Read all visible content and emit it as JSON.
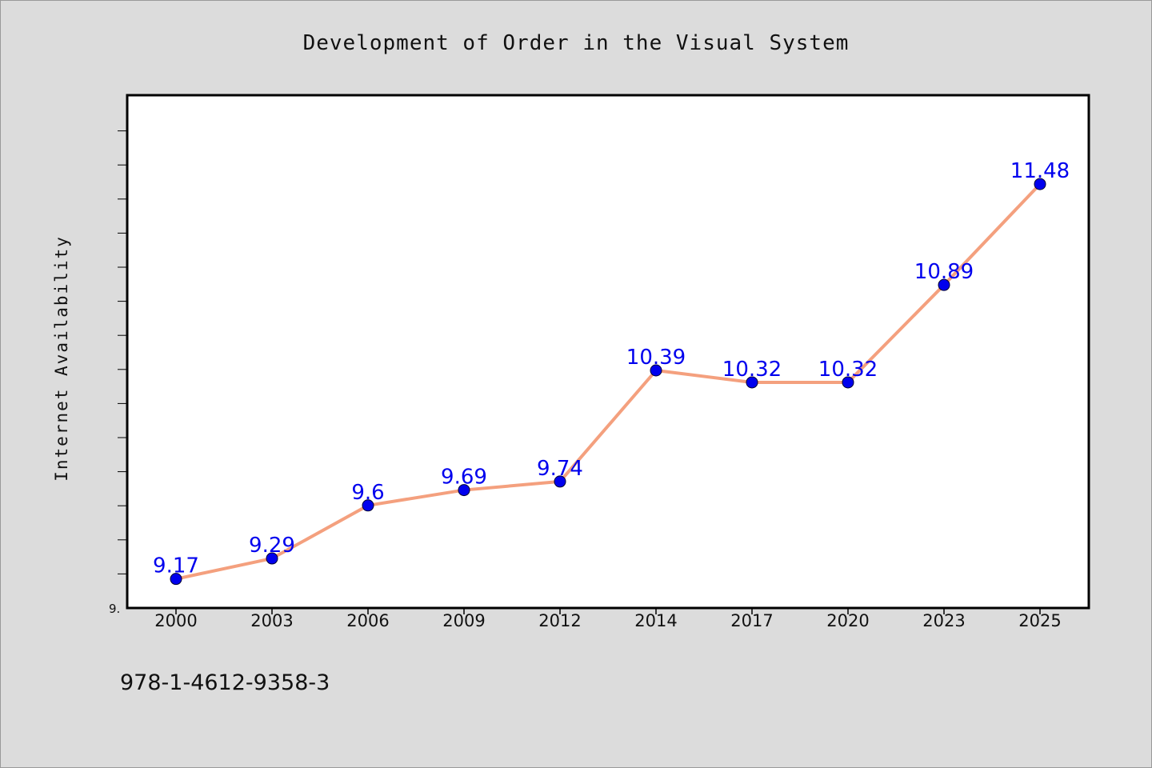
{
  "chart_data": {
    "type": "line",
    "title": "Development of Order in the Visual System",
    "xlabel": "",
    "ylabel": "Internet Availability",
    "categories": [
      "2000",
      "2003",
      "2006",
      "2009",
      "2012",
      "2014",
      "2017",
      "2020",
      "2023",
      "2025"
    ],
    "series": [
      {
        "values": [
          9.17,
          9.29,
          9.6,
          9.69,
          9.74,
          10.39,
          10.32,
          10.32,
          10.89,
          11.48
        ]
      }
    ],
    "data_labels": [
      "9.17",
      "9.29",
      "9.6",
      "9.69",
      "9.74",
      "10.39",
      "10.32",
      "10.32",
      "10.89",
      "11.48"
    ],
    "ylim": [
      9.0,
      12.0
    ],
    "y_tick_labels": [
      "9."
    ],
    "grid": false,
    "legend": "none",
    "colors": {
      "line": "#f4a07e",
      "marker": "#0000ee",
      "data_label": "#0000ee",
      "plot_background": "#ffffff",
      "figure_background": "#dcdcdc"
    }
  },
  "footer": {
    "code": "978-1-4612-9358-3"
  }
}
